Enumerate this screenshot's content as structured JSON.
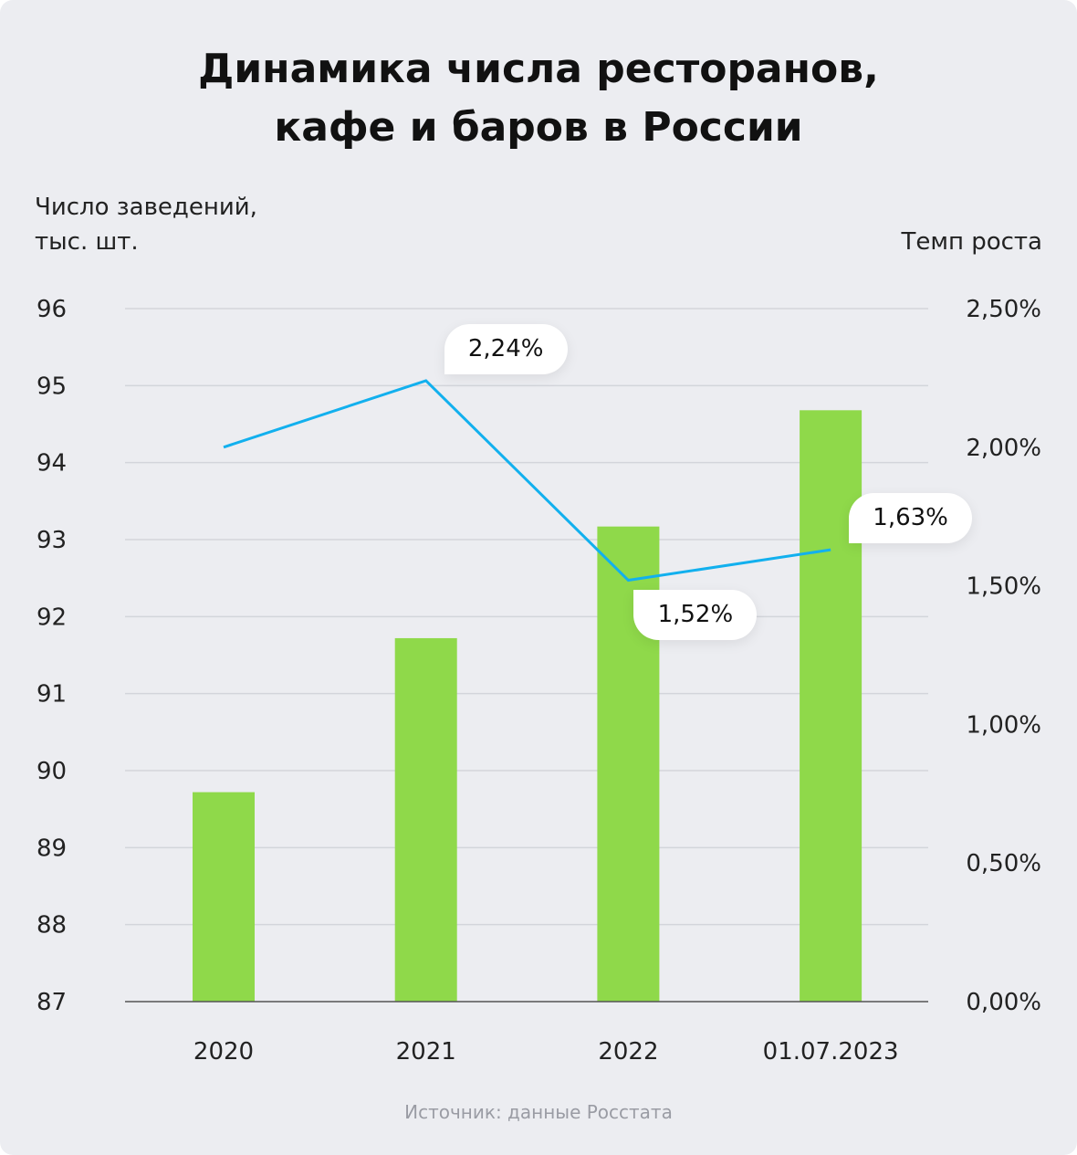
{
  "chart_data": {
    "type": "bar+line",
    "title": "Динамика числа ресторанов, кафе и баров в России",
    "title_lines": [
      "Динамика числа ресторанов,",
      "кафе и баров в России"
    ],
    "ylabel_lines": [
      "Число заведений,",
      "тыс. шт."
    ],
    "y2label": "Темп роста",
    "categories": [
      "2020",
      "2021",
      "2022",
      "01.07.2023"
    ],
    "bars": {
      "name": "Число заведений, тыс. шт.",
      "values": [
        89.72,
        91.72,
        93.17,
        94.68
      ],
      "color": "#8fd94a"
    },
    "line": {
      "name": "Темп роста",
      "values": [
        2.0,
        2.24,
        1.52,
        1.63
      ],
      "color": "#12b0ee"
    },
    "callouts": [
      {
        "index": 1,
        "label": "2,24%",
        "placement": "above-right"
      },
      {
        "index": 2,
        "label": "1,52%",
        "placement": "below-right"
      },
      {
        "index": 3,
        "label": "1,63%",
        "placement": "above-right"
      }
    ],
    "ylim": [
      87,
      96
    ],
    "yticks": [
      "87",
      "88",
      "89",
      "90",
      "91",
      "92",
      "93",
      "94",
      "95",
      "96"
    ],
    "y2lim": [
      0,
      2.5
    ],
    "y2ticks": [
      "0,00%",
      "0,50%",
      "1,00%",
      "1,50%",
      "2,00%",
      "2,50%"
    ],
    "grid": true,
    "source": "Источник: данные Росстата"
  }
}
